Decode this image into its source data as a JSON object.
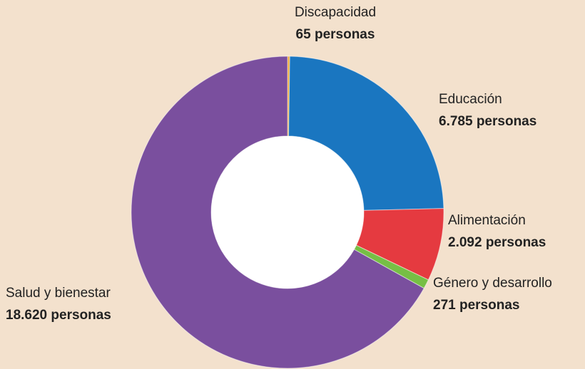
{
  "chart_data": {
    "type": "donut",
    "categories": [
      "Discapacidad",
      "Educación",
      "Alimentación",
      "Género y desarrollo",
      "Salud y bienestar"
    ],
    "values": [
      65,
      6785,
      2092,
      271,
      18620
    ],
    "value_labels": [
      "65 personas",
      "6.785 personas",
      "2.092 personas",
      "271 personas",
      "18.620 personas"
    ],
    "colors": [
      "#f2a93b",
      "#1a76c0",
      "#e53a40",
      "#76bf45",
      "#7a4f9e"
    ]
  }
}
